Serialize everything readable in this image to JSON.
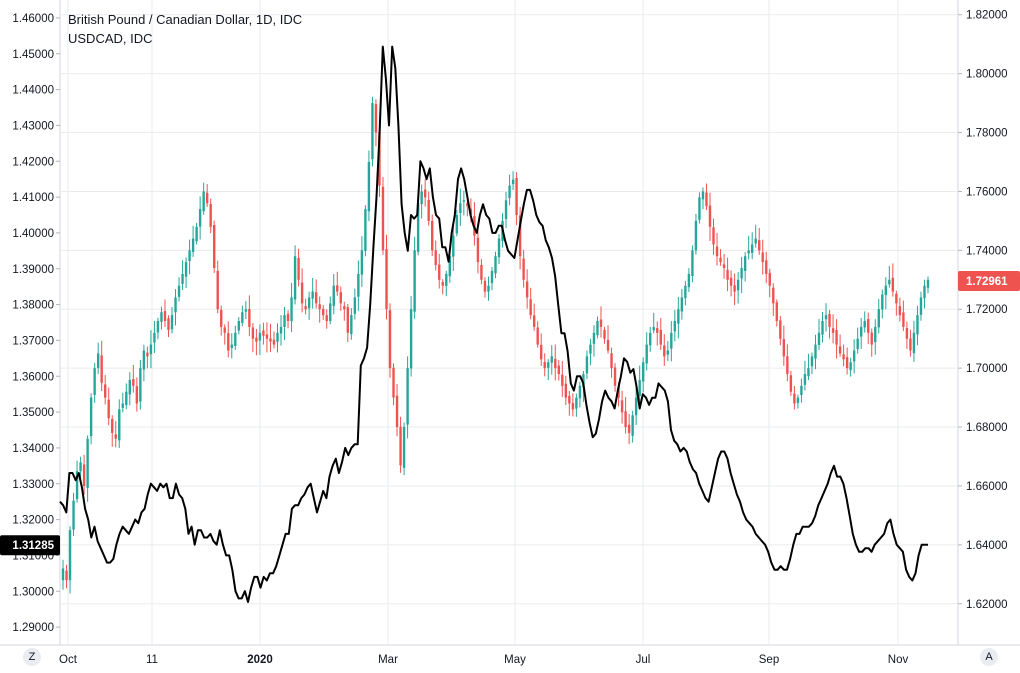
{
  "header": {
    "title": "British Pound / Canadian Dollar, 1D, IDC",
    "subtitle": "USDCAD, IDC"
  },
  "controls": {
    "left_button": "Z",
    "right_button": "A"
  },
  "colors": {
    "up": "#26a69a",
    "down": "#ef5350",
    "line": "#000000",
    "grid": "#e9ebef",
    "axis_text": "#131722",
    "left_badge": "#000000",
    "right_badge": "#ef5350"
  },
  "chart_data": {
    "type": "candlestick+line",
    "x_labels": [
      "Oct",
      "11",
      "2020",
      "Mar",
      "May",
      "Jul",
      "Sep",
      "Nov"
    ],
    "left_axis": {
      "series": "USDCAD, IDC",
      "range": [
        1.285,
        1.465
      ],
      "ticks": [
        "1.46000",
        "1.45000",
        "1.44000",
        "1.43000",
        "1.42000",
        "1.41000",
        "1.40000",
        "1.39000",
        "1.38000",
        "1.37000",
        "1.36000",
        "1.35000",
        "1.34000",
        "1.33000",
        "1.32000",
        "1.31000",
        "1.30000",
        "1.29000"
      ],
      "last_value_label": "1.31285"
    },
    "right_axis": {
      "series": "British Pound / Canadian Dollar",
      "range": [
        1.606,
        1.825
      ],
      "ticks": [
        "1.82000",
        "1.80000",
        "1.78000",
        "1.76000",
        "1.74000",
        "1.72000",
        "1.70000",
        "1.68000",
        "1.66000",
        "1.64000",
        "1.62000"
      ],
      "last_value_label": "1.72961"
    },
    "gbpcad_close": [
      1.632,
      1.628,
      1.645,
      1.655,
      1.665,
      1.668,
      1.66,
      1.676,
      1.69,
      1.7,
      1.705,
      1.695,
      1.69,
      1.683,
      1.678,
      1.676,
      1.686,
      1.688,
      1.692,
      1.696,
      1.694,
      1.688,
      1.7,
      1.706,
      1.704,
      1.708,
      1.712,
      1.716,
      1.719,
      1.716,
      1.713,
      1.718,
      1.724,
      1.728,
      1.732,
      1.736,
      1.74,
      1.744,
      1.748,
      1.754,
      1.76,
      1.756,
      1.748,
      1.734,
      1.72,
      1.714,
      1.712,
      1.706,
      1.708,
      1.712,
      1.716,
      1.719,
      1.72,
      1.714,
      1.71,
      1.709,
      1.712,
      1.711,
      1.71,
      1.709,
      1.708,
      1.712,
      1.714,
      1.718,
      1.716,
      1.724,
      1.738,
      1.73,
      1.722,
      1.72,
      1.724,
      1.726,
      1.722,
      1.72,
      1.718,
      1.716,
      1.722,
      1.728,
      1.726,
      1.722,
      1.72,
      1.712,
      1.718,
      1.724,
      1.732,
      1.74,
      1.754,
      1.77,
      1.79,
      1.78,
      1.762,
      1.74,
      1.72,
      1.7,
      1.69,
      1.68,
      1.667,
      1.68,
      1.7,
      1.72,
      1.74,
      1.756,
      1.76,
      1.758,
      1.75,
      1.74,
      1.735,
      1.73,
      1.728,
      1.732,
      1.738,
      1.745,
      1.752,
      1.756,
      1.757,
      1.755,
      1.752,
      1.745,
      1.736,
      1.73,
      1.726,
      1.728,
      1.733,
      1.738,
      1.744,
      1.75,
      1.757,
      1.762,
      1.764,
      1.752,
      1.738,
      1.73,
      1.724,
      1.718,
      1.714,
      1.708,
      1.703,
      1.7,
      1.702,
      1.704,
      1.7,
      1.698,
      1.694,
      1.69,
      1.688,
      1.686,
      1.69,
      1.694,
      1.698,
      1.704,
      1.708,
      1.712,
      1.716,
      1.714,
      1.71,
      1.706,
      1.7,
      1.694,
      1.69,
      1.685,
      1.68,
      1.678,
      1.684,
      1.69,
      1.696,
      1.702,
      1.708,
      1.712,
      1.714,
      1.712,
      1.708,
      1.704,
      1.706,
      1.712,
      1.716,
      1.72,
      1.724,
      1.728,
      1.732,
      1.74,
      1.75,
      1.758,
      1.76,
      1.755,
      1.748,
      1.742,
      1.738,
      1.736,
      1.734,
      1.73,
      1.728,
      1.726,
      1.73,
      1.734,
      1.738,
      1.74,
      1.742,
      1.744,
      1.74,
      1.736,
      1.732,
      1.728,
      1.722,
      1.716,
      1.71,
      1.704,
      1.698,
      1.692,
      1.688,
      1.69,
      1.694,
      1.698,
      1.7,
      1.704,
      1.708,
      1.712,
      1.716,
      1.718,
      1.714,
      1.712,
      1.708,
      1.705,
      1.703,
      1.7,
      1.702,
      1.706,
      1.71,
      1.714,
      1.716,
      1.712,
      1.708,
      1.714,
      1.72,
      1.725,
      1.728,
      1.73,
      1.726,
      1.722,
      1.718,
      1.714,
      1.71,
      1.706,
      1.712,
      1.718,
      1.724,
      1.728,
      1.73
    ],
    "usdcad_line": [
      1.325,
      1.324,
      1.322,
      1.333,
      1.333,
      1.331,
      1.333,
      1.329,
      1.323,
      1.32,
      1.315,
      1.318,
      1.314,
      1.312,
      1.31,
      1.308,
      1.308,
      1.309,
      1.313,
      1.316,
      1.318,
      1.317,
      1.316,
      1.318,
      1.32,
      1.319,
      1.322,
      1.323,
      1.327,
      1.33,
      1.329,
      1.328,
      1.33,
      1.329,
      1.33,
      1.326,
      1.326,
      1.33,
      1.327,
      1.326,
      1.323,
      1.316,
      1.318,
      1.313,
      1.317,
      1.317,
      1.315,
      1.315,
      1.316,
      1.314,
      1.313,
      1.317,
      1.313,
      1.31,
      1.31,
      1.306,
      1.3,
      1.298,
      1.298,
      1.3,
      1.297,
      1.301,
      1.304,
      1.304,
      1.301,
      1.304,
      1.303,
      1.305,
      1.305,
      1.307,
      1.31,
      1.313,
      1.316,
      1.316,
      1.323,
      1.324,
      1.324,
      1.326,
      1.327,
      1.329,
      1.33,
      1.326,
      1.322,
      1.325,
      1.328,
      1.326,
      1.332,
      1.335,
      1.337,
      1.333,
      1.336,
      1.34,
      1.338,
      1.34,
      1.341,
      1.341,
      1.363,
      1.365,
      1.368,
      1.38,
      1.396,
      1.41,
      1.428,
      1.452,
      1.443,
      1.43,
      1.452,
      1.446,
      1.43,
      1.408,
      1.4,
      1.395,
      1.405,
      1.404,
      1.405,
      1.42,
      1.418,
      1.415,
      1.418,
      1.41,
      1.405,
      1.404,
      1.396,
      1.396,
      1.392,
      1.4,
      1.405,
      1.415,
      1.418,
      1.415,
      1.41,
      1.405,
      1.402,
      1.4,
      1.405,
      1.408,
      1.405,
      1.404,
      1.4,
      1.4,
      1.402,
      1.402,
      1.398,
      1.395,
      1.394,
      1.393,
      1.398,
      1.403,
      1.408,
      1.412,
      1.412,
      1.409,
      1.405,
      1.403,
      1.402,
      1.398,
      1.396,
      1.393,
      1.388,
      1.38,
      1.372,
      1.372,
      1.367,
      1.358,
      1.356,
      1.36,
      1.36,
      1.358,
      1.352,
      1.347,
      1.343,
      1.344,
      1.348,
      1.353,
      1.356,
      1.354,
      1.353,
      1.351,
      1.356,
      1.36,
      1.365,
      1.364,
      1.361,
      1.362,
      1.357,
      1.351,
      1.355,
      1.354,
      1.352,
      1.354,
      1.354,
      1.358,
      1.357,
      1.356,
      1.353,
      1.345,
      1.342,
      1.341,
      1.339,
      1.34,
      1.339,
      1.336,
      1.334,
      1.333,
      1.33,
      1.328,
      1.326,
      1.325,
      1.329,
      1.333,
      1.337,
      1.339,
      1.339,
      1.337,
      1.333,
      1.33,
      1.327,
      1.325,
      1.322,
      1.32,
      1.319,
      1.318,
      1.316,
      1.315,
      1.314,
      1.313,
      1.311,
      1.308,
      1.306,
      1.306,
      1.307,
      1.306,
      1.306,
      1.309,
      1.313,
      1.316,
      1.316,
      1.318,
      1.318,
      1.318,
      1.319,
      1.321,
      1.324,
      1.326,
      1.328,
      1.33,
      1.333,
      1.335,
      1.332,
      1.332,
      1.33,
      1.326,
      1.321,
      1.316,
      1.313,
      1.311,
      1.311,
      1.312,
      1.312,
      1.311,
      1.313,
      1.314,
      1.315,
      1.316,
      1.319,
      1.32,
      1.316,
      1.313,
      1.312,
      1.311,
      1.306,
      1.304,
      1.303,
      1.305,
      1.31,
      1.313,
      1.313,
      1.313
    ]
  }
}
